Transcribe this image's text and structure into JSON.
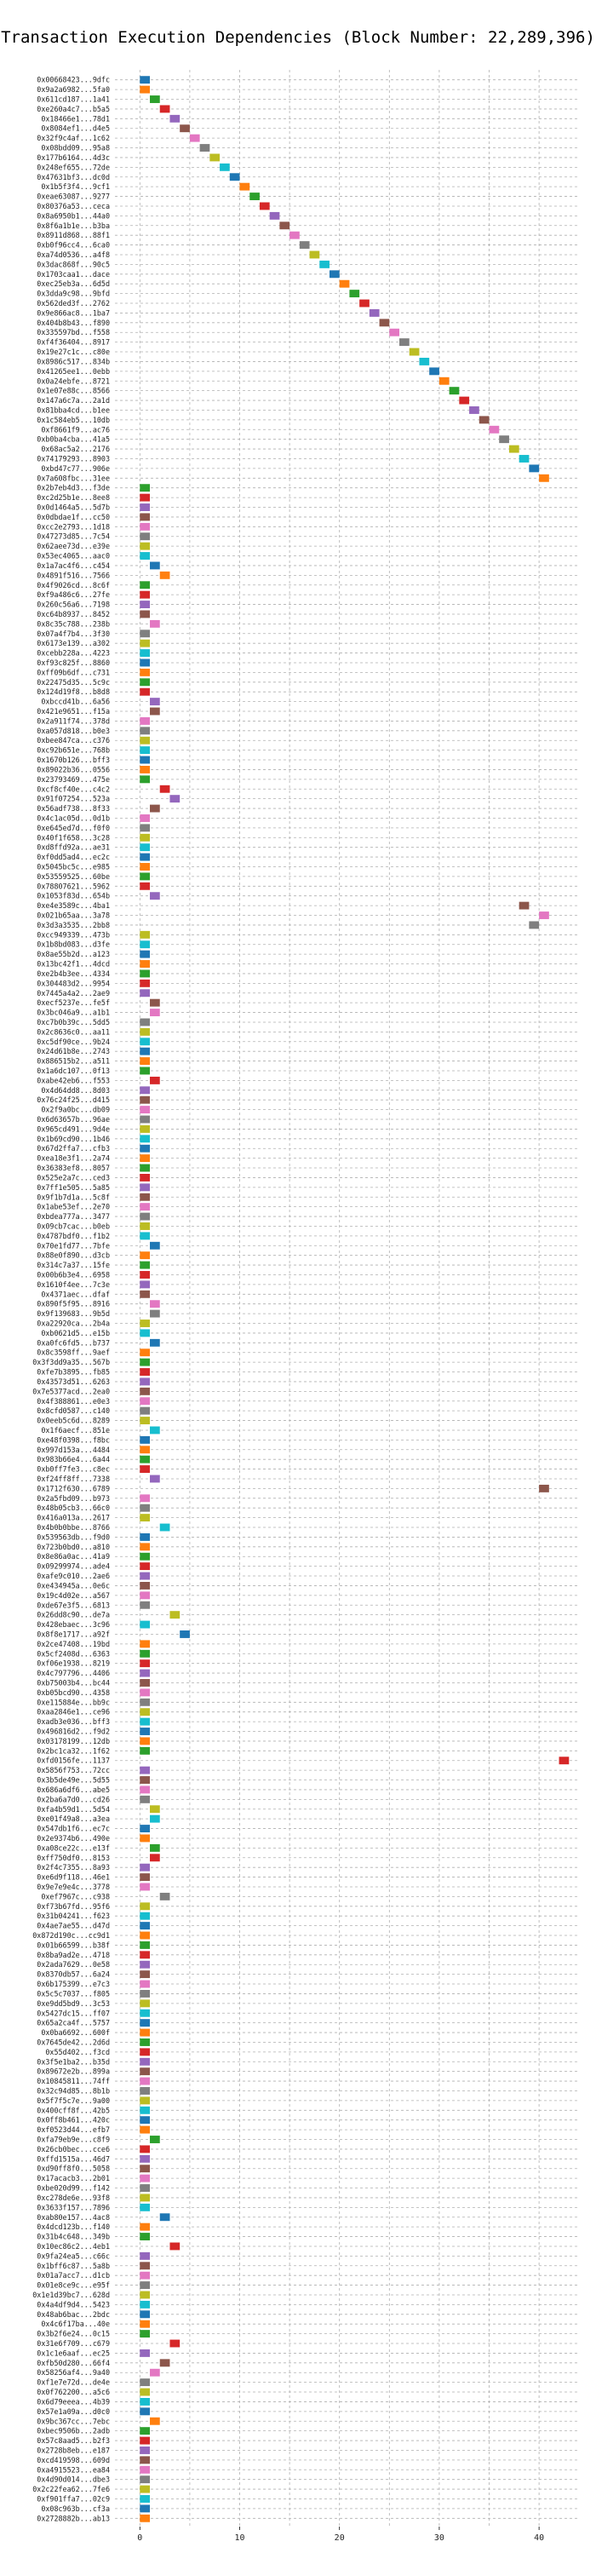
{
  "chart_data": {
    "type": "bar",
    "orientation": "horizontal",
    "title": "Transaction Execution Dependencies (Block Number: 22,289,396)",
    "xlabel": "",
    "ylabel": "",
    "xlim": [
      -2.5,
      44
    ],
    "xticks": [
      0,
      10,
      20,
      30,
      40
    ],
    "grid": true,
    "legend": "none",
    "palette": [
      "#1f77b4",
      "#ff7f0e",
      "#2ca02c",
      "#d62728",
      "#9467bd",
      "#8c564b",
      "#e377c2",
      "#7f7f7f",
      "#bcbd22",
      "#17becf"
    ],
    "bar_width": 1,
    "categories": [
      "0x00668423...9dfc",
      "0x9a2a6982...5fa0",
      "0x611cd187...1a41",
      "0xe260a4c7...b5a5",
      "0x18466e1...78d1",
      "0x8084ef1...d4e5",
      "0x32f9c4af...1c62",
      "0x08bdd09...95a8",
      "0x177b6164...4d3c",
      "0x248ef655...72de",
      "0x47631bf3...dc0d",
      "0x1b5f3f4...9cf1",
      "0xeae63087...9277",
      "0x80376a53...ceca",
      "0x8a6950b1...44a0",
      "0x8f6a1b1e...b3ba",
      "0x8911d868...88f1",
      "0xb0f96cc4...6ca0",
      "0xa74d0536...a4f8",
      "0x3dac868f...90c5",
      "0x1703caa1...dace",
      "0xec25eb3a...6d5d",
      "0x3dda9c98...9bfd",
      "0x562ded3f...2762",
      "0x9e866ac8...1ba7",
      "0x404b8b43...f890",
      "0x335597bd...f558",
      "0xf4f36404...8917",
      "0x19e27c1c...c80e",
      "0x8986c517...834b",
      "0x41265ee1...0ebb",
      "0x0a24ebfe...8721",
      "0x1e07e88c...8566",
      "0x147a6c7a...2a1d",
      "0x81bba4cd...b1ee",
      "0x1c584eb5...10db",
      "0xf8661f9...ac76",
      "0xb0ba4cba...41a5",
      "0x68ac5a2...2176",
      "0x74179293...8903",
      "0xbd47c77...906e",
      "0x7a608fbc...31ee",
      "0x2b7eb4d3...f3de",
      "0xc2d25b1e...8ee8",
      "0x0d1464a5...5d7b",
      "0x0dbdae1f...cc50",
      "0xcc2e2793...1d18",
      "0x47273d85...7c54",
      "0x62aee73d...e39e",
      "0x53ec4065...aac0",
      "0x1a7ac4f6...c454",
      "0x4891f516...7566",
      "0x4f9026cd...8c6f",
      "0xf9a486c6...27fe",
      "0x260c56a6...7198",
      "0xc64b8937...8452",
      "0x8c35c788...238b",
      "0x07a4f7b4...3f30",
      "0x6173e139...a302",
      "0xcebb228a...4223",
      "0xf93c825f...8860",
      "0xff09b6df...c731",
      "0x22475d35...5c9c",
      "0x124d19f8...b8d8",
      "0xbccd41b...6a56",
      "0x421e9651...f15a",
      "0x2a911f74...378d",
      "0xa057d818...b0e3",
      "0xbee847ca...c376",
      "0xc92b651e...768b",
      "0x1670b126...bff3",
      "0x89022b36...0556",
      "0x23793469...475e",
      "0xcf8cf40e...c4c2",
      "0x91f07254...523a",
      "0x56adf738...8f33",
      "0x4c1ac05d...0d1b",
      "0xe645ed7d...f0f0",
      "0x40f1f658...3c28",
      "0xd8ffd92a...ae31",
      "0xf0dd5ad4...ec2c",
      "0x5045bc5c...e985",
      "0x53559525...60be",
      "0x78807621...5962",
      "0x1053f83d...654b",
      "0xe4e3589c...4ba1",
      "0x021b65aa...3a78",
      "0x3d3a3535...2bb8",
      "0xcc949339...473b",
      "0x1b8bd083...d3fe",
      "0x8ae55b2d...a123",
      "0x13bc42f1...4dcd",
      "0xe2b4b3ee...4334",
      "0x304483d2...9954",
      "0x7445a4a2...2ae9",
      "0xecf5237e...fe5f",
      "0x3bc046a9...a1b1",
      "0xc7b0b39c...5dd5",
      "0x2c8636c0...aa11",
      "0xc5df90ce...9b24",
      "0x24d61b8e...2743",
      "0x886515b2...a511",
      "0x1a6dc107...0f13",
      "0xabe42eb6...f553",
      "0x4d64dd8...8d03",
      "0x76c24f25...d415",
      "0x2f9a0bc...db09",
      "0x6d63657b...96ae",
      "0x965cd491...9d4e",
      "0x1b69cd90...1b46",
      "0x67d2ffa7...cfb3",
      "0xea18e3f1...2a74",
      "0x36383ef8...8057",
      "0x525e2a7c...ced3",
      "0x7ff1e505...5a85",
      "0x9f1b7d1a...5c8f",
      "0x1abe53ef...2e70",
      "0xbdea777a...3477",
      "0x09cb7cac...b0eb",
      "0x4787bdf0...f1b2",
      "0x70e1fd77...7bfe",
      "0x88e0f890...d3cb",
      "0x314c7a37...15fe",
      "0x00b6b3e4...6958",
      "0x1610f4ee...7c3e",
      "0x4371aec...dfaf",
      "0x890f5f95...8916",
      "0x9f139683...9b5d",
      "0xa22920ca...2b4a",
      "0xb0621d5...e15b",
      "0xa0fc6fd5...b737",
      "0x8c3598ff...9aef",
      "0x3f3dd9a35...567b",
      "0xfe7b3895...fb85",
      "0x43573d51...6263",
      "0x7e5377acd...2ea0",
      "0x4f388861...e0e3",
      "0x8cfd0587...c140",
      "0x0eeb5c6d...8289",
      "0x1f6aecf...851e",
      "0xe48f0398...f8bc",
      "0x997d153a...4484",
      "0x983b66e4...6a44",
      "0xb0ff7fe3...c8ec",
      "0xf24ff8ff...7338",
      "0x1712f630...6789",
      "0x2a5fbd09...b973",
      "0x48b05cb3...66c0",
      "0x416a013a...2617",
      "0x4b0b0bbe...8766",
      "0x539563db...f9d0",
      "0x723b0bd0...a810",
      "0x8e86a0ac...41a9",
      "0x09299974...ade4",
      "0xafe9c010...2ae6",
      "0xe434945a...0e6c",
      "0x19c4d02e...a567",
      "0xde67e3f5...6813",
      "0x26dd8c90...de7a",
      "0x428ebaec...3c96",
      "0x8f8e1717...a92f",
      "0x2ce47408...19bd",
      "0x5cf2408d...6363",
      "0xf06e1938...8219",
      "0x4c797796...4406",
      "0xb75003b4...bc44",
      "0xb05bcd90...4358",
      "0xe115884e...bb9c",
      "0xaa2846e1...ce96",
      "0xadb3e036...bff3",
      "0x496816d2...f9d2",
      "0x03178199...12db",
      "0x2bc1ca32...1f62",
      "0xfd0156fe...1137",
      "0x5856f753...72cc",
      "0x3b5de49e...5d55",
      "0x686a6df6...abe5",
      "0x2ba6a7d0...cd26",
      "0xfa4b59d1...5d54",
      "0xe01f49a8...a3ea",
      "0x547db1f6...ec7c",
      "0x2e9374b6...490e",
      "0xa08ce22c...e13f",
      "0xff750df0...8153",
      "0x2f4c7355...8a93",
      "0xe6d9f118...46e1",
      "0x9e7e9e4c...3778",
      "0xef7967c...c938",
      "0xf73b67fd...95f6",
      "0x31b04241...f623",
      "0x4ae7ae55...d47d",
      "0x872d190c...cc9d1",
      "0x01b66599...b38f",
      "0x8ba9ad2e...4718",
      "0x2ada7629...0e58",
      "0x8370db57...6a24",
      "0x6b175399...e7c3",
      "0x5c5c7037...f805",
      "0xe9dd5bd9...3c53",
      "0x5427dc15...ff07",
      "0x65a2ca4f...5757",
      "0x0ba6692...600f",
      "0x7645de42...2d6d",
      "0x55d402...f3cd",
      "0x3f5e1ba2...b35d",
      "0x89672e2b...899a",
      "0x10845811...74ff",
      "0x32c94d85...8b1b",
      "0x5f7f5c7e...9a00",
      "0x400cff8f...42b5",
      "0x0ff8b461...420c",
      "0xf0523d44...efb7",
      "0xfa79eb9e...c8f9",
      "0x26cb0bec...cce6",
      "0xffd1515a...46d7",
      "0xd90ff8f0...5058",
      "0x17acacb3...2b01",
      "0xbe020d99...f142",
      "0xc278de6e...93f8",
      "0x3633f157...7896",
      "0xab80e157...4ac8",
      "0x4dcd123b...f140",
      "0x31b4c648...349b",
      "0x10ec86c2...4eb1",
      "0x9fa24ea5...c66c",
      "0x1bff6c87...5a8b",
      "0x01a7acc7...d1cb",
      "0x01e8ce9c...e95f",
      "0x1e1d39bc7...628d",
      "0x4a4df9d4...5423",
      "0x48ab6bac...2bdc",
      "0x4c6f17ba...40e",
      "0x3b2f6e24...0c15",
      "0x31e6f709...c679",
      "0x1c1e6aaf...ec25",
      "0xfb50d280...66f4",
      "0x58256af4...9a40",
      "0xf1e7e72d...de4e",
      "0x0f762200...a5c6",
      "0x6d79eeea...4b39",
      "0x57e1a09a...d0c0",
      "0x9bc367cc...7ebc",
      "0xbec9506b...2adb",
      "0x57c8aad5...b2f3",
      "0x2728b8eb...e187",
      "0xcd419598...609d",
      "0xa4915523...ea84",
      "0x4d90d014...dbe3",
      "0x2c22fea62...7fe6",
      "0xf901ffa7...02c9",
      "0x08c963b...cf3a",
      "0x2728882b...ab13"
    ],
    "start": [
      0,
      0,
      1,
      2,
      3,
      4,
      5,
      6,
      7,
      8,
      9,
      10,
      11,
      12,
      13,
      14,
      15,
      16,
      17,
      18,
      19,
      20,
      21,
      22,
      23,
      24,
      25,
      26,
      27,
      28,
      29,
      30,
      31,
      32,
      33,
      34,
      35,
      36,
      37,
      38,
      39,
      40,
      0,
      0,
      0,
      0,
      0,
      0,
      0,
      0,
      1,
      2,
      0,
      0,
      0,
      0,
      1,
      0,
      0,
      0,
      0,
      0,
      0,
      0,
      1,
      1,
      0,
      0,
      0,
      0,
      0,
      0,
      0,
      2,
      3,
      1,
      0,
      0,
      0,
      0,
      0,
      0,
      0,
      0,
      1,
      38,
      40,
      39,
      0,
      0,
      0,
      0,
      0,
      0,
      0,
      1,
      1,
      0,
      0,
      0,
      0,
      0,
      0,
      1,
      0,
      0,
      0,
      0,
      0,
      0,
      0,
      0,
      0,
      0,
      0,
      0,
      0,
      0,
      0,
      0,
      1,
      0,
      0,
      0,
      0,
      0,
      1,
      1,
      0,
      0,
      1,
      0,
      0,
      0,
      0,
      0,
      0,
      0,
      0,
      1,
      0,
      0,
      0,
      0,
      1,
      40,
      0,
      0,
      0,
      2,
      0,
      0,
      0,
      0,
      0,
      0,
      0,
      0,
      3,
      0,
      4,
      0,
      0,
      0,
      0,
      0,
      0,
      0,
      0,
      0,
      0,
      0,
      0,
      42,
      0,
      0,
      0,
      0,
      1,
      1,
      0,
      0,
      1,
      1,
      0,
      0,
      0,
      2,
      0,
      0,
      0,
      0,
      0,
      0,
      0,
      0,
      0,
      0,
      0,
      0,
      0,
      0,
      0,
      0,
      0,
      0,
      0,
      0,
      0,
      0,
      0,
      0,
      1,
      0,
      0,
      0,
      0,
      0,
      0,
      0,
      2,
      0,
      0,
      3,
      0,
      0,
      0,
      0,
      0,
      0,
      0,
      0,
      0,
      3,
      0,
      2,
      1,
      0,
      0,
      0,
      0,
      1,
      0,
      0,
      0,
      0,
      0,
      0,
      0,
      0,
      0,
      0,
      0,
      0,
      0,
      0,
      0,
      0,
      0,
      0,
      0,
      0
    ],
    "color_index": [
      0,
      1,
      2,
      3,
      4,
      5,
      6,
      7,
      8,
      9,
      0,
      1,
      2,
      3,
      4,
      5,
      6,
      7,
      8,
      9,
      0,
      1,
      2,
      3,
      4,
      5,
      6,
      7,
      8,
      9,
      0,
      1,
      2,
      3,
      4,
      5,
      6,
      7,
      8,
      9,
      0,
      1,
      2,
      3,
      4,
      5,
      6,
      7,
      8,
      9,
      0,
      1,
      2,
      3,
      4,
      5,
      6,
      7,
      8,
      9,
      0,
      1,
      2,
      3,
      4,
      5,
      6,
      7,
      8,
      9,
      0,
      1,
      2,
      3,
      4,
      5,
      6,
      7,
      8,
      9,
      0,
      1,
      2,
      3,
      4,
      5,
      6,
      7,
      8,
      9,
      0,
      1,
      2,
      3,
      4,
      5,
      6,
      7,
      8,
      9,
      0,
      1,
      2,
      3,
      4,
      5,
      6,
      7,
      8,
      9,
      0,
      1,
      2,
      3,
      4,
      5,
      6,
      7,
      8,
      9,
      0,
      1,
      2,
      3,
      4,
      5,
      6,
      7,
      8,
      9,
      0,
      1,
      2,
      3,
      4,
      5,
      6,
      7,
      8,
      9,
      0,
      1,
      2,
      3,
      4,
      5,
      6,
      7,
      8,
      9,
      0,
      1,
      2,
      3,
      4,
      5,
      6,
      7,
      8,
      9,
      0,
      1,
      2,
      3,
      4,
      5,
      6,
      7,
      8,
      9,
      0,
      1,
      2,
      3,
      4,
      5,
      6,
      7,
      8,
      9,
      0,
      1,
      2,
      3,
      4,
      5,
      6,
      7,
      8,
      9,
      0,
      1,
      2,
      3,
      4,
      5,
      6,
      7,
      8,
      9,
      0,
      1,
      2,
      3,
      4,
      5,
      6,
      7,
      8,
      9,
      0,
      1,
      2,
      3,
      4,
      5,
      6,
      7,
      8,
      9,
      0,
      1,
      2,
      3,
      4,
      5,
      6,
      7,
      8,
      9,
      0,
      1,
      2,
      3,
      4,
      5,
      6,
      7,
      8,
      9,
      0,
      1,
      2,
      3,
      4,
      5,
      6,
      7,
      8,
      9,
      0,
      1,
      2,
      3,
      4,
      5,
      6,
      7,
      8,
      9,
      0,
      1,
      2,
      3,
      4,
      5,
      6,
      7,
      8,
      9,
      0,
      1,
      2,
      3,
      4,
      5,
      6,
      7,
      8,
      9,
      0,
      1,
      2,
      3,
      4,
      5,
      6,
      7,
      8,
      9
    ]
  }
}
